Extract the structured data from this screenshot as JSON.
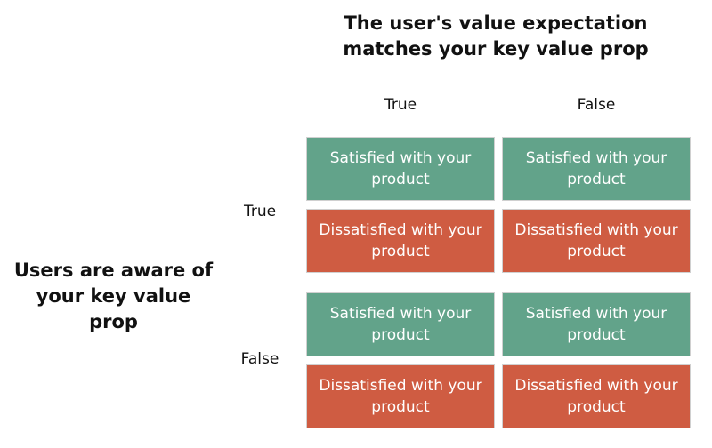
{
  "column_title": "The user's value expectation matches your key value prop",
  "row_title": "Users are aware of your key value prop",
  "columns": [
    "True",
    "False"
  ],
  "rows": [
    "True",
    "False"
  ],
  "cells": {
    "satisfied": "Satisfied with your product",
    "dissatisfied": "Dissatisfied with your product"
  },
  "colors": {
    "satisfied": "#62a38a",
    "dissatisfied": "#cf5c42"
  }
}
